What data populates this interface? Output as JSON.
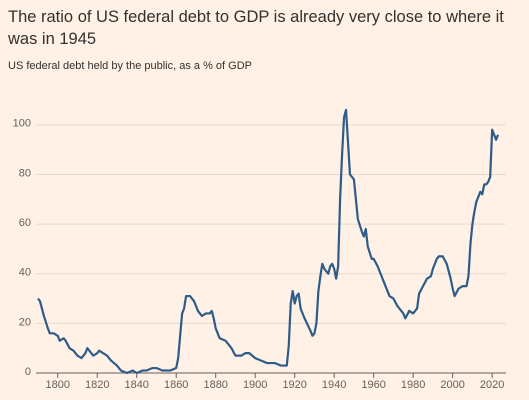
{
  "chart_data": {
    "type": "line",
    "title": "The ratio of US federal debt to GDP is already very close to where it was in 1945",
    "subtitle": "US federal debt held by the public, as a % of GDP",
    "x": [
      1790,
      1791,
      1792,
      1793,
      1795,
      1796,
      1798,
      1800,
      1801,
      1803,
      1804,
      1806,
      1808,
      1810,
      1812,
      1814,
      1815,
      1816,
      1818,
      1820,
      1821,
      1823,
      1825,
      1827,
      1830,
      1832,
      1835,
      1838,
      1840,
      1843,
      1845,
      1848,
      1850,
      1853,
      1857,
      1860,
      1861,
      1862,
      1863,
      1864,
      1865,
      1867,
      1869,
      1871,
      1873,
      1875,
      1877,
      1878,
      1879,
      1880,
      1882,
      1885,
      1888,
      1890,
      1893,
      1895,
      1897,
      1900,
      1903,
      1906,
      1910,
      1913,
      1916,
      1917,
      1918,
      1919,
      1920,
      1921,
      1922,
      1923,
      1925,
      1928,
      1929,
      1930,
      1931,
      1932,
      1933,
      1934,
      1935,
      1936,
      1937,
      1938,
      1939,
      1940,
      1941,
      1942,
      1943,
      1944,
      1945,
      1946,
      1947,
      1948,
      1950,
      1952,
      1954,
      1955,
      1956,
      1957,
      1959,
      1960,
      1962,
      1965,
      1968,
      1970,
      1972,
      1975,
      1976,
      1978,
      1980,
      1982,
      1983,
      1985,
      1987,
      1989,
      1990,
      1992,
      1993,
      1995,
      1997,
      1999,
      2000,
      2001,
      2003,
      2005,
      2007,
      2008,
      2009,
      2010,
      2011,
      2012,
      2013,
      2014,
      2015,
      2016,
      2017,
      2018,
      2019,
      2020,
      2021,
      2022,
      2023
    ],
    "series": [
      {
        "color": "#2e5c8a",
        "values": [
          30,
          29,
          26,
          23,
          18,
          16,
          16,
          15,
          13,
          14,
          13,
          10,
          9,
          7,
          6,
          8,
          10,
          9,
          7,
          8,
          9,
          8,
          7,
          5,
          3,
          1,
          0,
          1,
          0,
          1,
          1,
          2,
          2,
          1,
          1,
          2,
          6,
          15,
          24,
          26,
          31,
          31,
          29,
          25,
          23,
          24,
          24,
          25,
          22,
          18,
          14,
          13,
          10,
          7,
          7,
          8,
          8,
          6,
          5,
          4,
          4,
          3,
          3,
          11,
          28,
          33,
          28,
          31,
          32,
          26,
          22,
          17,
          15,
          16,
          20,
          33,
          39,
          44,
          42,
          41,
          40,
          43,
          44,
          42,
          38,
          43,
          70,
          88,
          103,
          106,
          93,
          80,
          78,
          62,
          57,
          55,
          58,
          51,
          46,
          46,
          43,
          37,
          31,
          30,
          27,
          24,
          22,
          25,
          24,
          26,
          32,
          35,
          38,
          39,
          42,
          46,
          47,
          47,
          44,
          38,
          34,
          31,
          34,
          35,
          35,
          39,
          52,
          60,
          65,
          69,
          71,
          73,
          72,
          76,
          76,
          77,
          79,
          98,
          96,
          94,
          96
        ]
      }
    ],
    "xlim": [
      1789,
      2026
    ],
    "ylim": [
      0,
      110
    ],
    "xticks": [
      1800,
      1820,
      1840,
      1860,
      1880,
      1900,
      1920,
      1940,
      1960,
      1980,
      2000,
      2020
    ],
    "yticks": [
      0,
      20,
      40,
      60,
      80,
      100
    ],
    "grid": true
  }
}
